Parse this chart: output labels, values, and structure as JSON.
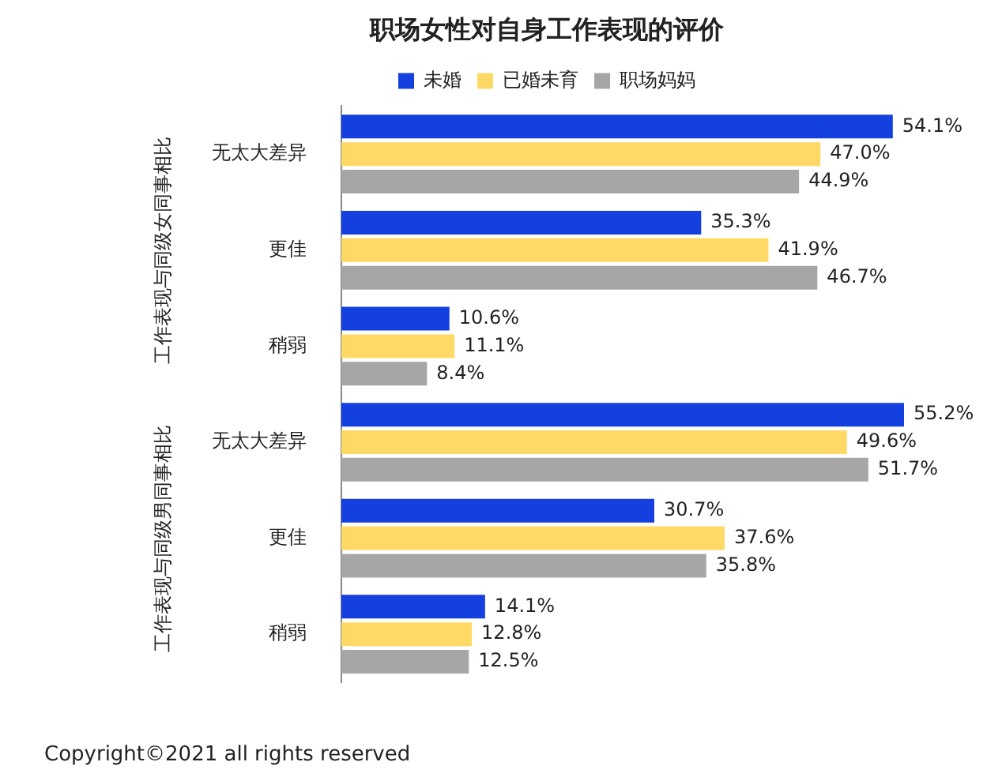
{
  "chart_data": {
    "type": "bar",
    "orientation": "horizontal",
    "title": "职场女性对自身工作表现的评价",
    "categories": [
      "无太大差异",
      "更佳",
      "稍弱",
      "无太大差异",
      "更佳",
      "稍弱"
    ],
    "series": [
      {
        "name": "未婚",
        "color": "#1440e0",
        "values": [
          54.1,
          35.3,
          10.6,
          55.2,
          30.7,
          14.1
        ],
        "value_labels": [
          "54.1%",
          "35.3%",
          "10.6%",
          "55.2%",
          "30.7%",
          "14.1%"
        ]
      },
      {
        "name": "已婚未育",
        "color": "#ffd966",
        "values": [
          47.0,
          41.9,
          11.1,
          49.6,
          37.6,
          12.8
        ],
        "value_labels": [
          "47.0%",
          "41.9%",
          "11.1%",
          "49.6%",
          "37.6%",
          "12.8%"
        ]
      },
      {
        "name": "职场妈妈",
        "color": "#a6a6a6",
        "values": [
          44.9,
          46.7,
          8.4,
          51.7,
          35.8,
          12.5
        ],
        "value_labels": [
          "44.9%",
          "46.7%",
          "8.4%",
          "51.7%",
          "35.8%",
          "12.5%"
        ]
      }
    ],
    "legend": "top",
    "annotations": [
      "工作表现与同级女同事相比",
      "工作表现与同级男同事相比",
      "Copyright©2021 all rights reserved"
    ]
  }
}
